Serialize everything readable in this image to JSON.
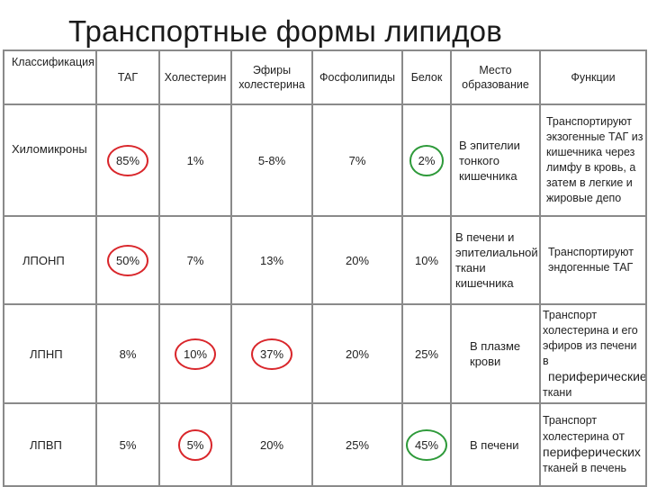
{
  "title": "Транспортные формы липидов",
  "headers": {
    "classification": "Классификация",
    "tag": "ТАГ",
    "cholesterol": "Холестерин",
    "esters_l1": "Эфиры",
    "esters_l2": "холестерина",
    "phospho": "Фосфолипиды",
    "protein": "Белок",
    "place_l1": "Место",
    "place_l2": "образование",
    "functions": "Функции"
  },
  "rows": [
    {
      "name": "Хиломикроны",
      "tag": "85%",
      "chol": "1%",
      "esters": "5-8%",
      "phospho": "7%",
      "protein": "2%",
      "place": [
        "В эпителии",
        "тонкого",
        "кишечника"
      ],
      "func": [
        "Транспортируют",
        "экзогенные ТАГ из",
        "кишечника через",
        "лимфу в кровь, а",
        "затем в легкие и",
        "жировые депо"
      ]
    },
    {
      "name": "ЛПОНП",
      "tag": "50%",
      "chol": "7%",
      "esters": "13%",
      "phospho": "20%",
      "protein": "10%",
      "place": [
        "В печени и",
        "эпителиальной",
        "ткани",
        "кишечника"
      ],
      "func": [
        "Транспортируют",
        "эндогенные ТАГ"
      ]
    },
    {
      "name": "ЛПНП",
      "tag": "8%",
      "chol": "10%",
      "esters": "37%",
      "phospho": "20%",
      "protein": "25%",
      "place": [
        "В плазме",
        "крови"
      ],
      "func": [
        "Транспорт",
        "холестерина и его",
        "эфиров из печени в"
      ],
      "func_insert": "периферические",
      "func_tail": "ткани"
    },
    {
      "name": "ЛПВП",
      "tag": "5%",
      "chol": "5%",
      "esters": "20%",
      "phospho": "25%",
      "protein": "45%",
      "place": [
        "В печени"
      ],
      "func": [
        "Транспорт"
      ],
      "func_line2": "холестерина",
      "func_line2_insert": "от",
      "func_insert": "периферических",
      "func_tail": "тканей в печень"
    }
  ],
  "colors": {
    "red_circle": "#d9262b",
    "green_circle": "#2e9a3a",
    "border": "#8a8a8a"
  }
}
